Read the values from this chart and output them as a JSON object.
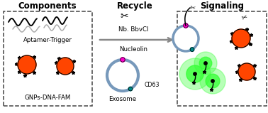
{
  "title_components": "Components",
  "title_recycle": "Recycle",
  "title_signaling": "Signaling",
  "label_aptamer": "Aptamer-Trigger",
  "label_gnps": "GNPs-DNA-FAM",
  "label_nb": "Nb. BbvCI",
  "label_nucleolin": "Nucleolin",
  "label_cd63": "CD63",
  "label_exosome": "Exosome",
  "orange_color": "#FF4500",
  "green_color": "#33FF33",
  "magenta_color": "#FF00CC",
  "teal_color": "#008888",
  "exosome_ring_color": "#7799BB",
  "bg_color": "#FFFFFF",
  "arrow_color": "#888888",
  "dashed_box_color": "#444444",
  "title_fontsize": 8.5,
  "label_fontsize": 6.2
}
